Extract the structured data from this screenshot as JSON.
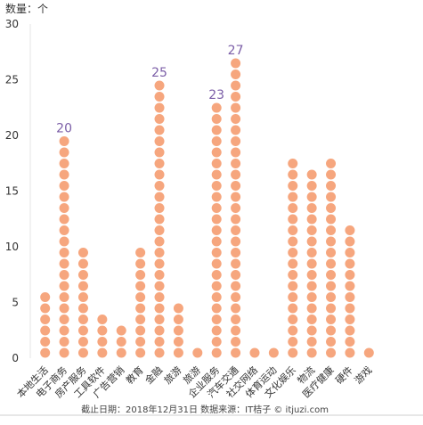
{
  "chart_data": {
    "type": "bar",
    "mark_style": "stacked-dots",
    "ylabel": "数量：个",
    "ylim": [
      0,
      30
    ],
    "yticks": [
      0,
      5,
      10,
      15,
      20,
      25,
      30
    ],
    "categories": [
      "本地生活",
      "电子商务",
      "房产服务",
      "工具软件",
      "广告营销",
      "教育",
      "金融",
      "旅游",
      "旅游",
      "企业服务",
      "汽车交通",
      "社交网络",
      "体育运动",
      "文化娱乐",
      "物流",
      "医疗健康",
      "硬件",
      "游戏"
    ],
    "values": [
      6,
      20,
      10,
      4,
      3,
      10,
      25,
      5,
      1,
      23,
      27,
      1,
      1,
      18,
      17,
      18,
      12,
      1
    ],
    "data_labels": [
      {
        "category_index": 1,
        "text": "20"
      },
      {
        "category_index": 6,
        "text": "25"
      },
      {
        "category_index": 9,
        "text": "23"
      },
      {
        "category_index": 10,
        "text": "27"
      }
    ]
  },
  "colors": {
    "dot": "#f6a67e",
    "label": "#7b5ea7",
    "axis": "#333333"
  },
  "footer": {
    "text": "截止日期：2018年12月31日    数据来源：IT桔子 © itjuzi.com"
  }
}
